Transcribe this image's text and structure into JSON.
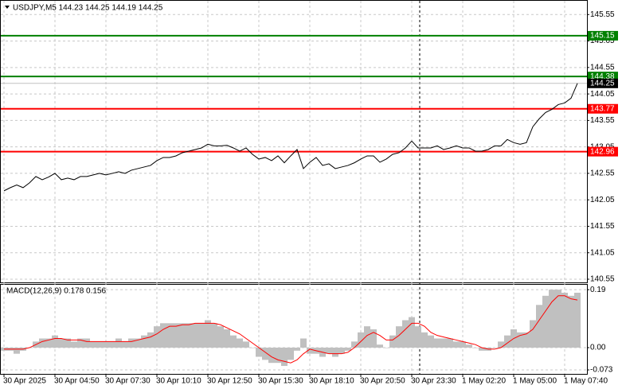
{
  "chart_data": [
    {
      "type": "line",
      "title": "USDJPY,M5  144.23 144.25 144.19 144.25",
      "categories": [
        "30 Apr 2025",
        null,
        null,
        null,
        null,
        null,
        null,
        null,
        "30 Apr 04:50",
        null,
        null,
        null,
        null,
        null,
        null,
        null,
        "30 Apr 07:30",
        null,
        null,
        null,
        null,
        null,
        null,
        null,
        "30 Apr 10:10",
        null,
        null,
        null,
        null,
        null,
        null,
        null,
        "30 Apr 12:50",
        null,
        null,
        null,
        null,
        null,
        null,
        null,
        "30 Apr 15:30",
        null,
        null,
        null,
        null,
        null,
        null,
        null,
        "30 Apr 18:10",
        null,
        null,
        null,
        null,
        null,
        null,
        null,
        "30 Apr 20:50",
        null,
        null,
        null,
        null,
        null,
        null,
        null,
        "30 Apr 23:30",
        null,
        null,
        null,
        null,
        null,
        null,
        null,
        "1 May 02:20",
        null,
        null,
        null,
        null,
        null,
        null,
        null,
        "1 May 05:00",
        null,
        null,
        null,
        null,
        null,
        null,
        null,
        "1 May 07:40",
        null,
        null
      ],
      "values": [
        142.22,
        142.28,
        142.33,
        142.28,
        142.37,
        142.49,
        142.43,
        142.48,
        142.55,
        142.43,
        142.46,
        142.43,
        142.49,
        142.49,
        142.52,
        142.55,
        142.52,
        142.55,
        142.58,
        142.55,
        142.61,
        142.64,
        142.67,
        142.7,
        142.79,
        142.85,
        142.85,
        142.88,
        142.94,
        142.97,
        143.0,
        143.03,
        143.1,
        143.07,
        143.07,
        143.08,
        143.03,
        142.97,
        143.03,
        142.91,
        142.82,
        142.85,
        142.79,
        142.88,
        142.75,
        142.88,
        143.0,
        142.64,
        142.76,
        142.85,
        142.7,
        142.73,
        142.64,
        142.67,
        142.7,
        142.75,
        142.82,
        142.88,
        142.88,
        142.76,
        142.82,
        142.91,
        142.94,
        143.03,
        143.16,
        143.03,
        143.03,
        143.03,
        143.07,
        143.0,
        143.03,
        143.07,
        143.03,
        143.03,
        142.97,
        142.97,
        143.0,
        143.07,
        143.07,
        143.19,
        143.13,
        143.1,
        143.13,
        143.43,
        143.58,
        143.7,
        143.76,
        143.85,
        143.88,
        143.97,
        144.25
      ],
      "color": "#000000",
      "ylim": [
        140.49,
        145.81
      ],
      "yticks": [
        145.55,
        145.05,
        144.55,
        144.05,
        143.55,
        143.05,
        142.55,
        142.05,
        141.55,
        141.05,
        140.55
      ],
      "grid": true,
      "levels": [
        {
          "value": 145.15,
          "color": "#008000",
          "label_color": "#008000"
        },
        {
          "value": 144.38,
          "color": "#008000",
          "label_color": "#008000"
        },
        {
          "value": 144.25,
          "color": "#c0c0c0",
          "label_color": "#000000"
        },
        {
          "value": 143.77,
          "color": "#ff0000",
          "label_color": "#ff0000"
        },
        {
          "value": 142.96,
          "color": "#ff0000",
          "label_color": "#ff0000"
        }
      ]
    },
    {
      "type": "macd",
      "title": "MACD(12,26,9) 0.178 0.156",
      "histogram": [
        -0.01,
        -0.01,
        -0.02,
        -0.01,
        0.0,
        0.02,
        0.03,
        0.03,
        0.04,
        0.03,
        0.03,
        0.02,
        0.03,
        0.03,
        0.02,
        0.02,
        0.02,
        0.02,
        0.03,
        0.02,
        0.03,
        0.03,
        0.04,
        0.05,
        0.07,
        0.08,
        0.08,
        0.08,
        0.08,
        0.08,
        0.08,
        0.08,
        0.09,
        0.08,
        0.07,
        0.06,
        0.04,
        0.03,
        0.02,
        0.0,
        -0.03,
        -0.04,
        -0.05,
        -0.05,
        -0.06,
        -0.04,
        -0.01,
        0.03,
        -0.02,
        -0.02,
        -0.03,
        -0.02,
        -0.03,
        -0.02,
        -0.01,
        0.02,
        0.05,
        0.07,
        0.06,
        0.01,
        0.0,
        0.04,
        0.07,
        0.09,
        0.1,
        0.07,
        0.05,
        0.04,
        0.03,
        0.03,
        0.03,
        0.02,
        0.02,
        0.01,
        0.0,
        -0.01,
        -0.01,
        0.0,
        0.02,
        0.04,
        0.06,
        0.05,
        0.05,
        0.09,
        0.14,
        0.17,
        0.19,
        0.19,
        0.18,
        0.17,
        0.18
      ],
      "histogram_color": "#c0c0c0",
      "signal": [
        -0.005,
        -0.005,
        -0.005,
        -0.005,
        0.0,
        0.01,
        0.02,
        0.025,
        0.03,
        0.03,
        0.025,
        0.025,
        0.025,
        0.02,
        0.02,
        0.02,
        0.02,
        0.02,
        0.02,
        0.02,
        0.02,
        0.025,
        0.03,
        0.035,
        0.045,
        0.06,
        0.07,
        0.07,
        0.075,
        0.075,
        0.08,
        0.08,
        0.08,
        0.08,
        0.075,
        0.065,
        0.055,
        0.045,
        0.03,
        0.015,
        0.0,
        -0.015,
        -0.03,
        -0.04,
        -0.045,
        -0.05,
        -0.04,
        -0.02,
        -0.005,
        -0.01,
        -0.015,
        -0.02,
        -0.02,
        -0.02,
        -0.015,
        0.0,
        0.02,
        0.04,
        0.05,
        0.04,
        0.025,
        0.025,
        0.04,
        0.06,
        0.08,
        0.08,
        0.07,
        0.05,
        0.04,
        0.035,
        0.03,
        0.025,
        0.02,
        0.015,
        0.01,
        0.0,
        -0.005,
        -0.005,
        0.0,
        0.015,
        0.03,
        0.04,
        0.045,
        0.06,
        0.09,
        0.12,
        0.15,
        0.17,
        0.17,
        0.16,
        0.156
      ],
      "signal_color": "#ff0000",
      "ylim": [
        -0.086,
        0.206
      ],
      "yticks": [
        0.19,
        {
          "value": 0,
          "label": "0.00"
        },
        -0.073
      ]
    }
  ]
}
